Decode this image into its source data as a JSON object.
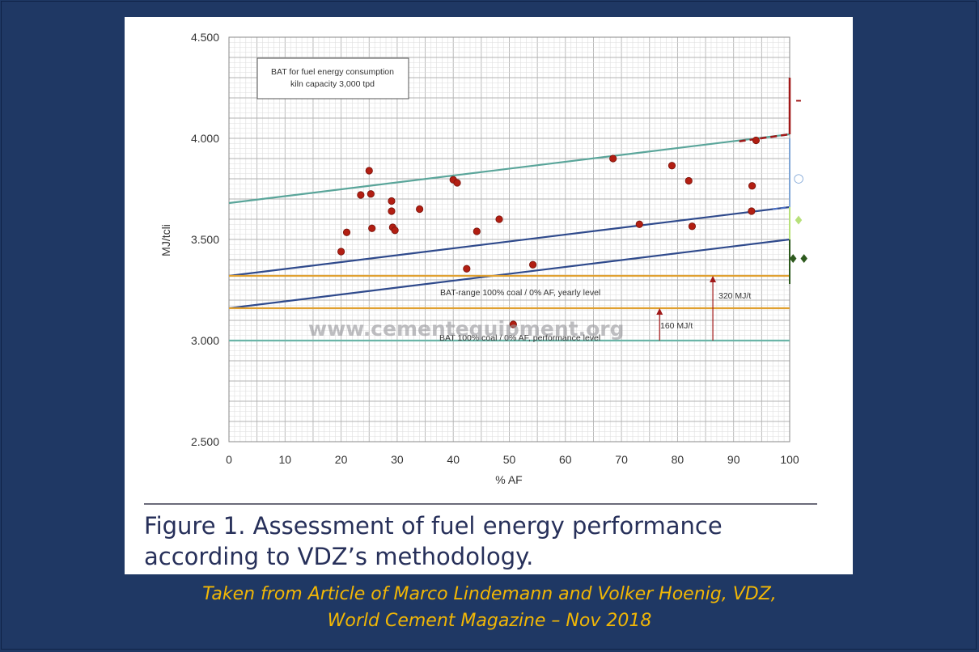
{
  "chart_data": {
    "type": "scatter",
    "xlabel": "% AF",
    "ylabel": "MJ/tcli",
    "xlim": [
      0,
      100
    ],
    "ylim": [
      2500,
      4500
    ],
    "x_ticks": [
      "0",
      "10",
      "20",
      "30",
      "40",
      "50",
      "60",
      "70",
      "80",
      "90",
      "100"
    ],
    "y_ticks": [
      "2.500",
      "3.000",
      "3.500",
      "4.000",
      "4.500"
    ],
    "grid": true,
    "legend_box": [
      "BAT for fuel energy consumption",
      "kiln capacity 3,000 tpd"
    ],
    "lines": [
      {
        "color": "#5aa59a",
        "x": [
          0,
          100
        ],
        "y": [
          3680,
          4020
        ]
      },
      {
        "color": "#2f4a8c",
        "x": [
          0,
          100
        ],
        "y": [
          3320,
          3660
        ]
      },
      {
        "color": "#2f4a8c",
        "x": [
          0,
          100
        ],
        "y": [
          3160,
          3500
        ]
      },
      {
        "color": "#e0a030",
        "x": [
          0,
          100
        ],
        "y": [
          3320,
          3320
        ]
      },
      {
        "color": "#e0a030",
        "x": [
          0,
          100
        ],
        "y": [
          3160,
          3160
        ]
      },
      {
        "color": "#6bb5a8",
        "x": [
          0,
          100
        ],
        "y": [
          3000,
          3000
        ]
      }
    ],
    "points": [
      {
        "x": 20,
        "y": 3440
      },
      {
        "x": 21,
        "y": 3535
      },
      {
        "x": 23.5,
        "y": 3720
      },
      {
        "x": 25,
        "y": 3840
      },
      {
        "x": 25.3,
        "y": 3725
      },
      {
        "x": 25.5,
        "y": 3555
      },
      {
        "x": 29,
        "y": 3690
      },
      {
        "x": 29,
        "y": 3640
      },
      {
        "x": 29.2,
        "y": 3560
      },
      {
        "x": 29.6,
        "y": 3545
      },
      {
        "x": 34,
        "y": 3650
      },
      {
        "x": 40,
        "y": 3795
      },
      {
        "x": 40.7,
        "y": 3780
      },
      {
        "x": 42.4,
        "y": 3355
      },
      {
        "x": 44.2,
        "y": 3540
      },
      {
        "x": 48.2,
        "y": 3600
      },
      {
        "x": 50.7,
        "y": 3080
      },
      {
        "x": 54.2,
        "y": 3375
      },
      {
        "x": 68.5,
        "y": 3900
      },
      {
        "x": 73.2,
        "y": 3575
      },
      {
        "x": 79,
        "y": 3865
      },
      {
        "x": 82,
        "y": 3790
      },
      {
        "x": 82.6,
        "y": 3565
      },
      {
        "x": 93.3,
        "y": 3765
      },
      {
        "x": 93.2,
        "y": 3640
      },
      {
        "x": 94,
        "y": 3990
      }
    ],
    "annotations": [
      "BAT-range 100% coal / 0% AF, yearly level",
      "BAT 100% coal / 0% AF, performance level",
      "320 MJ/t",
      "160 MJ/t"
    ],
    "right_markers": [
      {
        "symbol": "–",
        "color": "#a01818"
      },
      {
        "symbol": "○",
        "color": "#7fa6d6"
      },
      {
        "symbol": "♦",
        "color": "#b7e07a"
      },
      {
        "symbol": "♦♦",
        "color": "#2e5a1e"
      }
    ]
  },
  "watermark": "www.cementequipment.org",
  "caption": {
    "line1": "Figure 1. Assessment of fuel energy performance",
    "line2": "according to VDZ’s methodology."
  },
  "footer": {
    "line1": "Taken from Article of Marco Lindemann and Volker Hoenig, VDZ,",
    "line2": "World Cement Magazine – Nov 2018"
  }
}
